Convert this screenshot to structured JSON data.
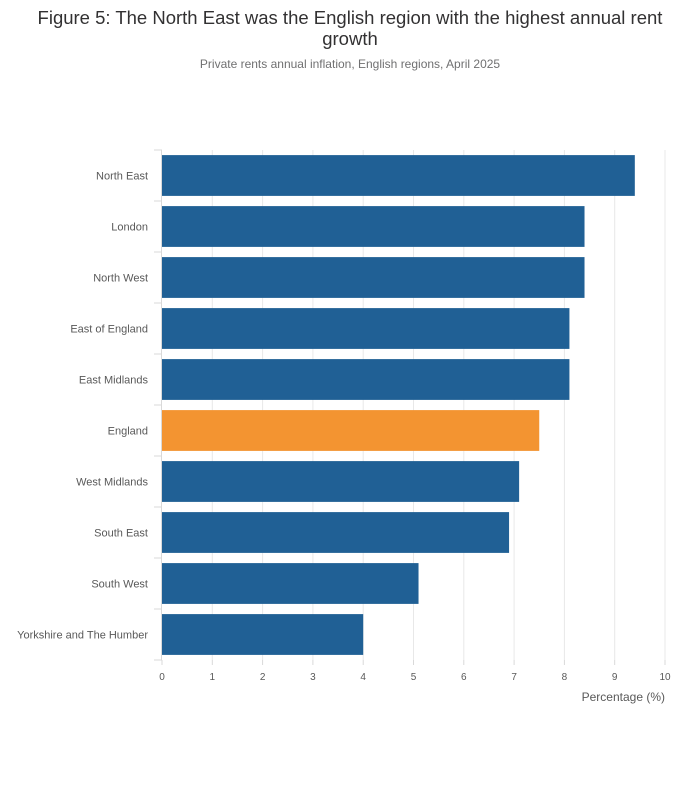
{
  "chart_data": {
    "type": "bar",
    "orientation": "horizontal",
    "title": "Figure 5: The North East was the English region with the highest annual rent growth",
    "subtitle": "Private rents annual inflation, English regions, April 2025",
    "categories": [
      "North East",
      "London",
      "North West",
      "East of England",
      "East Midlands",
      "England",
      "West Midlands",
      "South East",
      "South West",
      "Yorkshire and The Humber"
    ],
    "values": [
      9.4,
      8.4,
      8.4,
      8.1,
      8.1,
      7.5,
      7.1,
      6.9,
      5.1,
      4.0
    ],
    "highlight_category": "England",
    "xlabel": "Percentage (%)",
    "ylabel": "",
    "xlim": [
      0,
      10
    ],
    "xticks": [
      0,
      1,
      2,
      3,
      4,
      5,
      6,
      7,
      8,
      9,
      10
    ],
    "grid": true,
    "colors": {
      "bar": "#206095",
      "highlight": "#f39431",
      "grid": "#e8e8e8",
      "axis": "#d9d9d9"
    }
  }
}
